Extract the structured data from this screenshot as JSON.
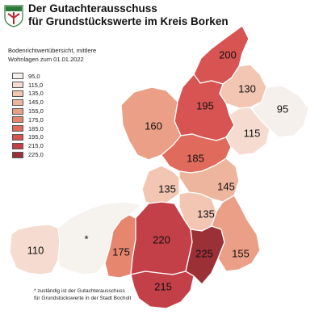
{
  "header": {
    "title_line1": "Der Gutachterausschuss",
    "title_line2": "für Grundstückswerte im Kreis Borken",
    "subtitle_line1": "Bodenrichtwertübersicht,  mittlere",
    "subtitle_line2": "Wohnlagen zum 01.01.2022"
  },
  "legend": [
    {
      "label": "95,0",
      "color": "#f6f0ec"
    },
    {
      "label": "115,0",
      "color": "#f6dcd0"
    },
    {
      "label": "135,0",
      "color": "#f2c6b3"
    },
    {
      "label": "145,0",
      "color": "#eeb59e"
    },
    {
      "label": "155,0",
      "color": "#ea9f86"
    },
    {
      "label": "175,0",
      "color": "#e6866e"
    },
    {
      "label": "185,0",
      "color": "#e06b5c"
    },
    {
      "label": "195,0",
      "color": "#d85452"
    },
    {
      "label": "215,0",
      "color": "#c44048"
    },
    {
      "label": "225,0",
      "color": "#9c3037"
    }
  ],
  "regions": {
    "r200": {
      "label": "200",
      "color": "#d85452"
    },
    "r130": {
      "label": "130",
      "color": "#f2c6b3"
    },
    "r95": {
      "label": "95",
      "color": "#f6f0ec"
    },
    "r195": {
      "label": "195",
      "color": "#d85452"
    },
    "r160": {
      "label": "160",
      "color": "#ea9f86"
    },
    "r115": {
      "label": "115",
      "color": "#f6dcd0"
    },
    "r185": {
      "label": "185",
      "color": "#e06b5c"
    },
    "r135a": {
      "label": "135",
      "color": "#f2c6b3"
    },
    "r145": {
      "label": "145",
      "color": "#eeb59e"
    },
    "r135b": {
      "label": "135",
      "color": "#f2c6b3"
    },
    "r110": {
      "label": "110",
      "color": "#f6dcd0"
    },
    "rbocholt": {
      "label": "*",
      "color": "#f6f2ee"
    },
    "r175": {
      "label": "175",
      "color": "#e6866e"
    },
    "r220": {
      "label": "220",
      "color": "#c44048"
    },
    "r225": {
      "label": "225",
      "color": "#9c3037"
    },
    "r155": {
      "label": "155",
      "color": "#ea9f86"
    },
    "r215": {
      "label": "215",
      "color": "#c44048"
    }
  },
  "footnote": {
    "line1": "* zuständig ist der Gutachterausschuss",
    "line2": "für Grundstückswerte in der Stadt Bocholt"
  }
}
